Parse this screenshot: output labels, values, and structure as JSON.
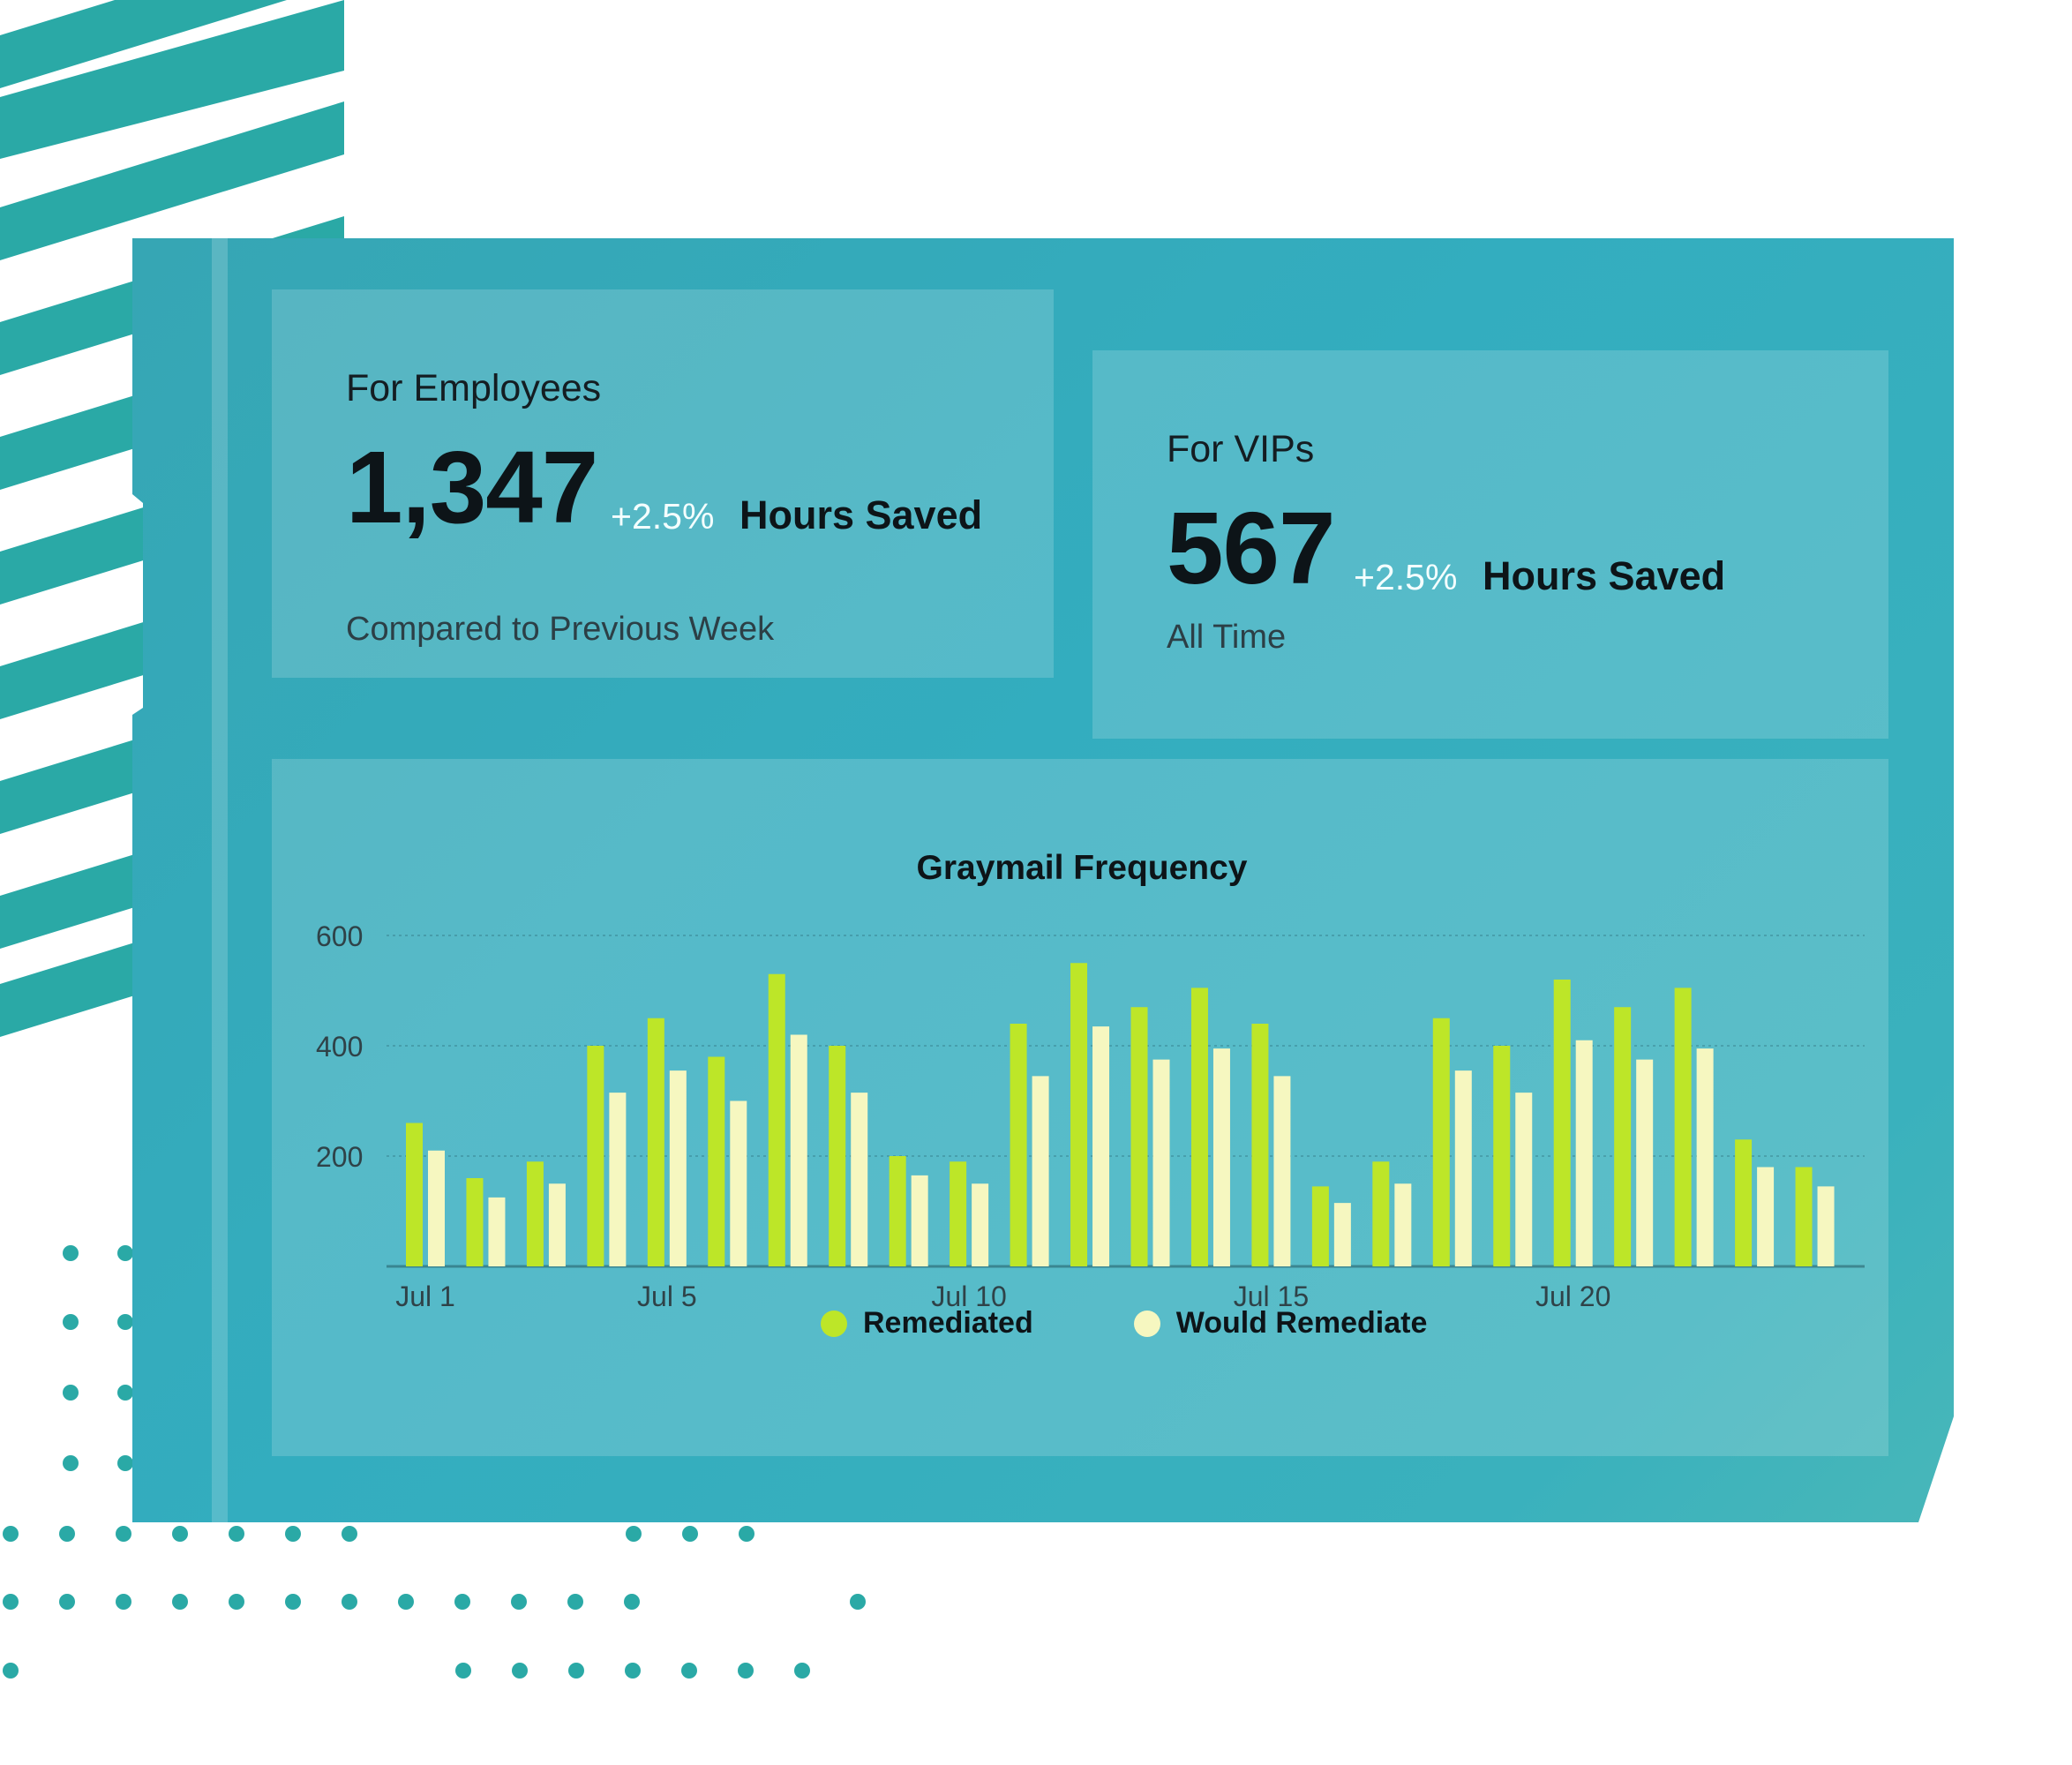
{
  "employees": {
    "title": "For Employees",
    "value": "1,347",
    "delta": "+2.5%",
    "unit": "Hours Saved",
    "caption": "Compared to Previous Week"
  },
  "vips": {
    "title": "For VIPs",
    "value": "567",
    "delta": "+2.5%",
    "unit": "Hours Saved",
    "caption": "All Time"
  },
  "colors": {
    "remediated": "#bde628",
    "would_remediate": "#f6f7c0",
    "accent": "#2aa9a6"
  },
  "chart_data": {
    "type": "bar",
    "title": "Graymail Frequency",
    "xlabel": "",
    "ylabel": "",
    "ylim": [
      0,
      600
    ],
    "y_ticks": [
      200,
      400,
      600
    ],
    "x_ticks": [
      "Jul 1",
      "Jul 5",
      "Jul 10",
      "Jul 15",
      "Jul 20"
    ],
    "x_tick_days": [
      1,
      5,
      10,
      15,
      20
    ],
    "categories": [
      1,
      2,
      3,
      4,
      5,
      6,
      7,
      8,
      9,
      10,
      11,
      12,
      13,
      14,
      15,
      16,
      17,
      18,
      19,
      20,
      21,
      22,
      23,
      24
    ],
    "grid": true,
    "legend_position": "bottom",
    "series": [
      {
        "name": "Remediated",
        "values": [
          260,
          160,
          190,
          400,
          450,
          380,
          530,
          400,
          200,
          190,
          440,
          550,
          470,
          505,
          440,
          145,
          190,
          450,
          400,
          520,
          470,
          505,
          230,
          180
        ]
      },
      {
        "name": "Would Remediate",
        "values": [
          210,
          125,
          150,
          315,
          355,
          300,
          420,
          315,
          165,
          150,
          345,
          435,
          375,
          395,
          345,
          115,
          150,
          355,
          315,
          410,
          375,
          395,
          180,
          145
        ]
      }
    ]
  }
}
